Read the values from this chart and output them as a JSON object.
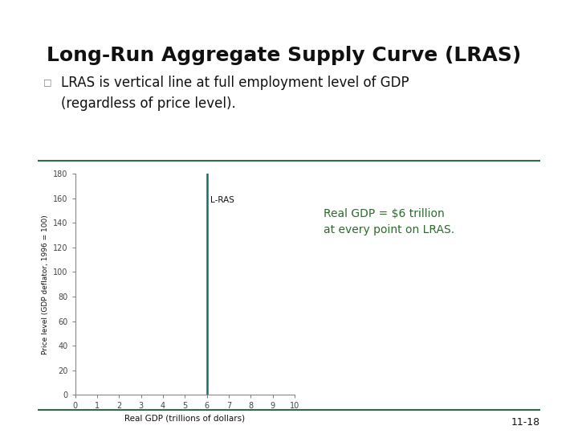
{
  "title": "Long-Run Aggregate Supply Curve (LRAS)",
  "title_fontsize": 18,
  "title_fontweight": "bold",
  "title_color": "#111111",
  "bullet_text": "LRAS is vertical line at full employment level of GDP\n(regardless of price level).",
  "bullet_fontsize": 12,
  "annotation_text": "Real GDP = $6 trillion\nat every point on LRAS.",
  "annotation_fontsize": 10,
  "annotation_color": "#2d6a2d",
  "lras_label": "L-RAS",
  "lras_x": 6,
  "lras_color": "#1a6b6b",
  "lras_linewidth": 1.8,
  "xlabel": "Real GDP (trillions of dollars)",
  "ylabel": "Price level (GDP deflator, 1996 = 100)",
  "xlim": [
    0,
    10
  ],
  "ylim": [
    0,
    180
  ],
  "xticks": [
    0,
    1,
    2,
    3,
    4,
    5,
    6,
    7,
    8,
    9,
    10
  ],
  "yticks": [
    0,
    20,
    40,
    60,
    80,
    100,
    120,
    140,
    160,
    180
  ],
  "header_green_color": "#4a9a6a",
  "slide_bg_color": "#ffffff",
  "separator_color": "#2d6a4a",
  "bullet_marker_color": "#4a9a6a",
  "footer_text": "11-18"
}
